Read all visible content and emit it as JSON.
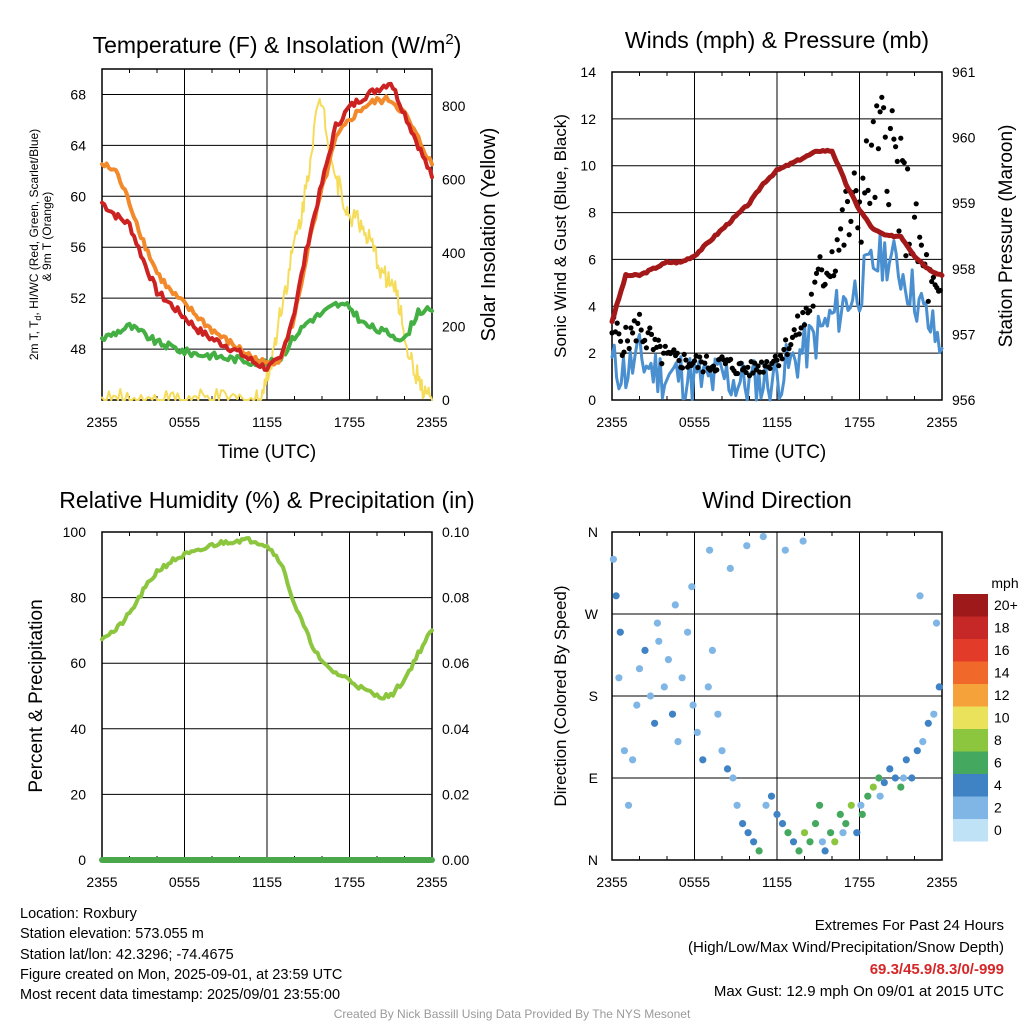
{
  "chart_data": [
    {
      "type": "line",
      "title": "Temperature (F) & Insolation (W/m²)",
      "title_main": "Temperature (F) & Insolation (W/m",
      "title_sup": "2",
      "title_end": ")",
      "xlabel": "Time (UTC)",
      "ylabel_lines": [
        "2m T, T",
        "d",
        ", HI/WC (Red, Green, Scarlet/Blue)",
        "& 9m T (Orange)"
      ],
      "y2label": "Solar Insolation (Yellow)",
      "x_ticks": [
        "2355",
        "0555",
        "1155",
        "1755",
        "2355"
      ],
      "ylim": [
        44,
        70
      ],
      "y_ticks": [
        48,
        52,
        56,
        60,
        64,
        68
      ],
      "y2lim": [
        0,
        900
      ],
      "y2_ticks": [
        0,
        200,
        400,
        600,
        800
      ],
      "grid": true,
      "series": [
        {
          "name": "2m T",
          "color": "#cc2222",
          "axis": "left",
          "width": 4,
          "x": [
            0,
            1,
            2,
            3,
            4,
            5,
            6,
            7,
            8,
            9,
            10,
            11,
            12,
            13,
            14,
            15,
            16,
            17,
            18,
            19,
            20,
            21,
            22,
            23,
            24
          ],
          "y": [
            59.5,
            58.5,
            57.8,
            55,
            52.5,
            51.5,
            50.5,
            49.5,
            48.8,
            48.3,
            47.7,
            47,
            46.5,
            47.2,
            51,
            56.5,
            61,
            65.5,
            67,
            67.8,
            68.4,
            69,
            66.5,
            64,
            61.5
          ]
        },
        {
          "name": "9m T",
          "color": "#f28a2c",
          "axis": "left",
          "width": 4,
          "x": [
            0,
            1,
            2,
            3,
            4,
            5,
            6,
            7,
            8,
            9,
            10,
            11,
            12,
            13,
            14,
            15,
            16,
            17,
            18,
            19,
            20,
            21,
            22,
            23,
            24
          ],
          "y": [
            62.5,
            62,
            59.5,
            56.5,
            54,
            52.5,
            51.5,
            50.5,
            49.5,
            48.7,
            48,
            47.3,
            46.8,
            47.3,
            50.5,
            56,
            60.5,
            64.5,
            66,
            67,
            67.5,
            67.6,
            66.5,
            64.5,
            62.5
          ]
        },
        {
          "name": "Td",
          "color": "#44b044",
          "axis": "left",
          "width": 4,
          "x": [
            0,
            1,
            2,
            3,
            4,
            5,
            6,
            7,
            8,
            9,
            10,
            11,
            12,
            13,
            14,
            15,
            16,
            17,
            18,
            19,
            20,
            21,
            22,
            23,
            24
          ],
          "y": [
            48.8,
            49.3,
            49.8,
            49.2,
            48.5,
            48.2,
            47.8,
            47.6,
            47.5,
            47.3,
            47.2,
            47,
            46.8,
            47.3,
            49,
            50.2,
            50.8,
            51.5,
            51.3,
            50,
            49.5,
            49.2,
            48.7,
            51,
            51
          ]
        },
        {
          "name": "Solar Insolation",
          "color": "#f5dc5a",
          "axis": "right",
          "width": 2,
          "x": [
            0,
            1,
            2,
            3,
            4,
            5,
            6,
            7,
            8,
            9,
            10,
            11,
            11.5,
            12,
            12.5,
            13,
            13.5,
            14,
            14.5,
            15,
            15.5,
            16,
            16.5,
            17,
            17.5,
            18,
            18.5,
            19,
            19.5,
            20,
            20.5,
            21,
            21.5,
            22,
            22.5,
            23,
            23.5,
            24
          ],
          "y": [
            0,
            0,
            0,
            0,
            0,
            0,
            0,
            0,
            0,
            0,
            0,
            0,
            10,
            60,
            140,
            250,
            330,
            430,
            500,
            620,
            760,
            820,
            700,
            600,
            560,
            480,
            520,
            450,
            430,
            380,
            340,
            320,
            280,
            180,
            100,
            60,
            20,
            0
          ]
        }
      ]
    },
    {
      "type": "line",
      "title": "Winds (mph) & Pressure (mb)",
      "xlabel": "Time (UTC)",
      "ylabel": "Sonic Wind & Gust (Blue, Black)",
      "y2label": "Station Pressure (Maroon)",
      "x_ticks": [
        "2355",
        "0555",
        "1155",
        "1755",
        "2355"
      ],
      "ylim": [
        0,
        14
      ],
      "y_ticks": [
        0,
        2,
        4,
        6,
        8,
        10,
        12,
        14
      ],
      "y2lim": [
        956,
        961
      ],
      "y2_ticks": [
        956,
        957,
        958,
        959,
        960,
        961
      ],
      "grid": true,
      "series": [
        {
          "name": "Sonic Wind",
          "color": "#4a90d0",
          "axis": "left",
          "width": 3,
          "x": [
            0,
            1,
            2,
            3,
            4,
            5,
            6,
            7,
            8,
            9,
            10,
            11,
            12,
            13,
            14,
            15,
            16,
            17,
            18,
            19,
            20,
            21,
            22,
            23,
            24
          ],
          "y": [
            1.5,
            1.2,
            1.8,
            1.3,
            1,
            1.1,
            0.9,
            0.8,
            1,
            0.8,
            0.7,
            0.8,
            1,
            1.5,
            2.2,
            2.8,
            3.5,
            4.2,
            4.8,
            5.8,
            6.2,
            5.5,
            4.5,
            3.3,
            2.2
          ]
        },
        {
          "name": "Gust",
          "color": "#000000",
          "axis": "left",
          "x": [
            0,
            1,
            2,
            3,
            4,
            5,
            6,
            7,
            8,
            9,
            10,
            11,
            12,
            13,
            14,
            15,
            16,
            17,
            18,
            19,
            20,
            21,
            22,
            23,
            24
          ],
          "y": [
            3,
            2.5,
            3.2,
            2.2,
            1.8,
            1.7,
            1.6,
            1.5,
            1.6,
            1.4,
            1.3,
            1.5,
            1.8,
            2.5,
            3.5,
            5,
            6.2,
            7.5,
            8.5,
            10,
            11.5,
            9,
            7,
            5,
            3.5
          ]
        },
        {
          "name": "Station Pressure",
          "color": "#a31818",
          "axis": "right",
          "width": 5,
          "x": [
            0,
            1,
            2,
            3,
            4,
            5,
            6,
            7,
            8,
            9,
            10,
            11,
            12,
            13,
            14,
            15,
            16,
            17,
            18,
            19,
            20,
            21,
            22,
            23,
            24
          ],
          "y": [
            957.2,
            957.9,
            957.9,
            958.0,
            958.1,
            958.1,
            958.2,
            958.4,
            958.6,
            958.8,
            959.0,
            959.3,
            959.5,
            959.6,
            959.7,
            959.8,
            959.8,
            959.3,
            958.9,
            958.6,
            958.5,
            958.5,
            958.2,
            958.0,
            957.9
          ]
        }
      ]
    },
    {
      "type": "line",
      "title": "Relative Humidity (%) & Precipitation (in)",
      "xlabel": "",
      "ylabel": "Percent & Precipitation",
      "x_ticks": [
        "2355",
        "0555",
        "1155",
        "1755",
        "2355"
      ],
      "ylim": [
        0,
        100
      ],
      "y_ticks": [
        0,
        20,
        40,
        60,
        80,
        100
      ],
      "y2lim": [
        0,
        0.1
      ],
      "y2_ticks": [
        "0.00",
        "0.02",
        "0.04",
        "0.06",
        "0.08",
        "0.10"
      ],
      "grid": true,
      "series": [
        {
          "name": "Relative Humidity",
          "color": "#8cc63f",
          "axis": "left",
          "width": 4,
          "x": [
            0,
            1,
            2,
            3,
            4,
            5,
            6,
            7,
            8,
            9,
            10,
            11,
            12,
            13,
            14,
            15,
            16,
            17,
            18,
            19,
            20,
            21,
            22,
            23,
            24
          ],
          "y": [
            68,
            70,
            75,
            82,
            88,
            91,
            93,
            94,
            96,
            97,
            97.5,
            97.5,
            96,
            91,
            78,
            68,
            60,
            57,
            55,
            52,
            50,
            50,
            55,
            63,
            70
          ]
        },
        {
          "name": "Precipitation",
          "color": "#4aa84a",
          "axis": "right",
          "width": 6,
          "x": [
            0,
            24
          ],
          "y": [
            0,
            0
          ]
        }
      ]
    },
    {
      "type": "scatter",
      "title": "Wind Direction",
      "xlabel": "",
      "ylabel": "Direction (Colored By Speed)",
      "x_ticks": [
        "2355",
        "0555",
        "1155",
        "1755",
        "2355"
      ],
      "y_ticks": [
        "N",
        "E",
        "S",
        "W",
        "N"
      ],
      "ylim": [
        0,
        360
      ],
      "grid": true,
      "legend": {
        "title": "mph",
        "labels": [
          "20+",
          "18",
          "16",
          "14",
          "12",
          "10",
          "8",
          "6",
          "4",
          "2",
          "0"
        ],
        "colors": [
          "#9e1a1a",
          "#c62828",
          "#e23b2a",
          "#f0682a",
          "#f6a23a",
          "#e9e25a",
          "#8cc63f",
          "#45a85f",
          "#3f83c4",
          "#7fb6e5",
          "#bfe2f7"
        ]
      },
      "series": [
        {
          "name": "Direction",
          "x": [
            0.1,
            0.3,
            0.6,
            0.9,
            1.2,
            1.5,
            2,
            2.4,
            2.8,
            3.1,
            3.4,
            3.8,
            4.1,
            4.4,
            4.8,
            5.1,
            5.5,
            5.9,
            6.2,
            6.6,
            7,
            7.3,
            7.7,
            8,
            8.4,
            8.8,
            9.1,
            9.5,
            9.9,
            10.3,
            10.7,
            11.2,
            11.6,
            12,
            12.4,
            12.8,
            13.2,
            13.6,
            14,
            14.4,
            14.8,
            15.1,
            15.5,
            15.9,
            16.2,
            16.6,
            17,
            17.4,
            17.8,
            18.2,
            18.6,
            19,
            19.4,
            19.8,
            20.2,
            20.6,
            21,
            21.4,
            21.8,
            22.2,
            22.6,
            23,
            23.4,
            23.8,
            0.5,
            1.8,
            3.3,
            4.6,
            5.8,
            7.1,
            8.6,
            9.8,
            11,
            12.6,
            13.9,
            15.3,
            16.8,
            18.1,
            19.5,
            21.2,
            22.4,
            23.6
          ],
          "y": [
            330,
            290,
            250,
            120,
            60,
            110,
            210,
            230,
            180,
            150,
            240,
            190,
            220,
            160,
            130,
            200,
            250,
            170,
            140,
            110,
            190,
            230,
            160,
            120,
            100,
            90,
            60,
            40,
            30,
            20,
            10,
            60,
            70,
            50,
            40,
            30,
            20,
            10,
            30,
            20,
            40,
            60,
            10,
            30,
            20,
            50,
            40,
            60,
            30,
            50,
            70,
            80,
            90,
            85,
            100,
            90,
            80,
            110,
            90,
            120,
            130,
            150,
            160,
            190,
            200,
            170,
            260,
            280,
            300,
            340,
            320,
            345,
            355,
            340,
            350,
            20,
            30,
            60,
            70,
            90,
            290,
            260
          ],
          "speed": [
            1,
            3,
            4,
            2,
            1,
            2,
            1,
            3,
            1,
            4,
            1,
            2,
            1,
            3,
            1,
            2,
            1,
            1,
            2,
            3,
            1,
            1,
            2,
            1,
            3,
            1,
            2,
            3,
            4,
            3,
            5,
            2,
            3,
            4,
            4,
            5,
            4,
            6,
            7,
            6,
            5,
            6,
            4,
            5,
            7,
            6,
            5,
            7,
            4,
            5,
            6,
            7,
            5,
            4,
            3,
            4,
            5,
            3,
            4,
            3,
            2,
            3,
            2,
            4,
            1,
            2,
            1,
            2,
            1,
            1,
            2,
            1,
            1,
            1,
            1,
            2,
            1,
            1,
            2,
            1,
            1,
            1
          ]
        }
      ]
    }
  ],
  "info": {
    "location": "Location: Roxbury",
    "elevation": "Station elevation: 573.055 m",
    "latlon": "Station lat/lon: 42.3296; -74.4675",
    "created": "Figure created on Mon, 2025-09-01, at 23:59 UTC",
    "recent": "Most recent data timestamp: 2025/09/01 23:55:00"
  },
  "extremes": {
    "title": "Extremes For Past 24 Hours",
    "subtitle": "(High/Low/Max Wind/Precipitation/Snow Depth)",
    "values": "69.3/45.9/8.3/0/-999",
    "max_gust": "Max Gust: 12.9 mph On 09/01 at 2015 UTC"
  },
  "credit": "Created By Nick Bassill Using Data Provided By The NYS Mesonet"
}
